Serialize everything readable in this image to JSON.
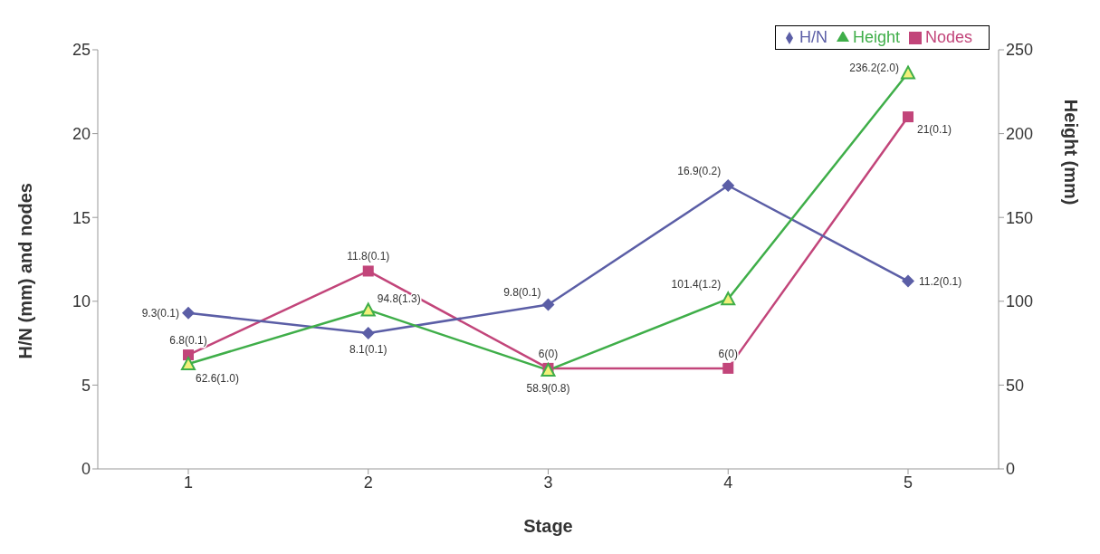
{
  "chart_data": {
    "type": "line",
    "xlabel": "Stage",
    "ylabel": "H/N (mm) and nodes",
    "y2label": "Height (mm)",
    "categories": [
      "1",
      "2",
      "3",
      "4",
      "5"
    ],
    "series": [
      {
        "name": "Nodes",
        "color": "#c2457a",
        "marker": "square",
        "values": [
          6.8,
          11.8,
          6,
          6,
          21
        ],
        "value_labels": [
          "6.8(0.1)",
          "11.8(0.1)",
          "6(0)",
          "6(0)",
          "21(0.1)"
        ]
      },
      {
        "name": "H/N",
        "color": "#5b5ea6",
        "marker": "diamond",
        "values": [
          9.3,
          8.1,
          9.8,
          16.9,
          11.2
        ],
        "value_labels": [
          "9.3(0.1)",
          "8.1(0.1)",
          "9.8(0.1)",
          "16.9(0.2)",
          "11.2(0.1)"
        ]
      },
      {
        "name": "Height",
        "color": "#3fae49",
        "marker": "triangle",
        "axis": "y2",
        "values": [
          62.6,
          94.8,
          58.9,
          101.4,
          236.2
        ],
        "value_labels": [
          "62.6(1.0)",
          "94.8(1.3)",
          "58.9(0.8)",
          "101.4(1.2)",
          "236.2(2.0)"
        ]
      }
    ],
    "ylim": [
      0,
      25
    ],
    "yticks": [
      0,
      5,
      10,
      15,
      20,
      25
    ],
    "y2lim": [
      0,
      250
    ],
    "y2ticks": [
      0,
      50,
      100,
      150,
      200,
      250
    ],
    "grid": false,
    "legend": "top right",
    "line_style": "solid"
  }
}
